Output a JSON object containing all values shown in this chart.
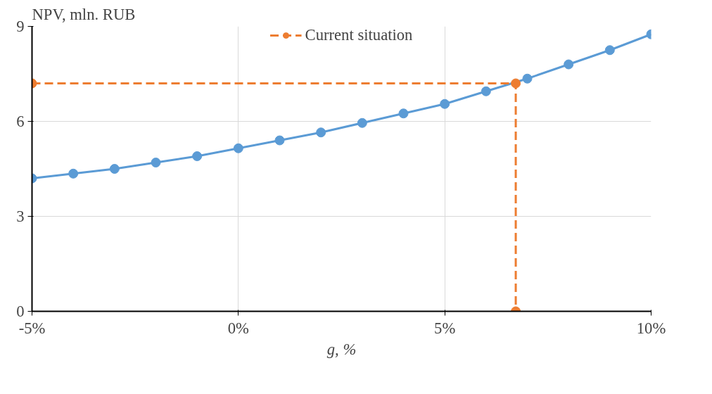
{
  "chart_data": {
    "type": "line",
    "ylabel": "NPV, mln. RUB",
    "xlabel": "g, %",
    "xlim": [
      -5,
      10
    ],
    "ylim": [
      0,
      9
    ],
    "xticks": [
      {
        "value": -5,
        "label": "-5%"
      },
      {
        "value": 0,
        "label": "0%"
      },
      {
        "value": 5,
        "label": "5%"
      },
      {
        "value": 10,
        "label": "10%"
      }
    ],
    "yticks": [
      0,
      3,
      6,
      9
    ],
    "grid": true,
    "legend": "top",
    "marker": "circle",
    "series": [
      {
        "color": "#5b9bd5",
        "line_style": "solid",
        "x": [
          -5,
          -4,
          -3,
          -2,
          -1,
          0,
          1,
          2,
          3,
          4,
          5,
          6,
          7,
          8,
          9,
          10
        ],
        "values": [
          4.2,
          4.35,
          4.5,
          4.7,
          4.9,
          5.15,
          5.4,
          5.65,
          5.95,
          6.25,
          6.55,
          6.95,
          7.35,
          7.8,
          8.25,
          8.75
        ]
      },
      {
        "name": "Current situation",
        "color": "#ed7d31",
        "line_style": "dashed",
        "x": [
          -5,
          6.72,
          6.72
        ],
        "values": [
          7.2,
          7.2,
          0
        ]
      }
    ]
  }
}
